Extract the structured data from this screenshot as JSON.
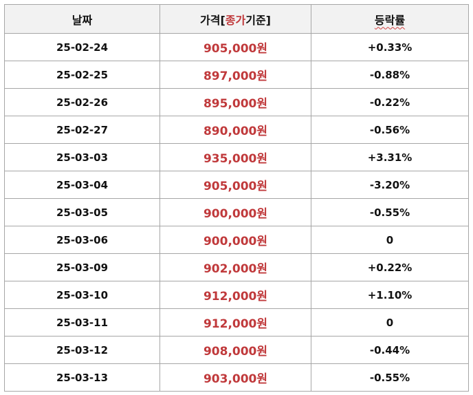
{
  "headers": {
    "date": "날짜",
    "price_prefix": "가격[",
    "price_highlight": "종가",
    "price_suffix": "기준]",
    "change": "등락률"
  },
  "rows": [
    {
      "date": "25-02-24",
      "price": "905,000원",
      "change": "+0.33%"
    },
    {
      "date": "25-02-25",
      "price": "897,000원",
      "change": "-0.88%"
    },
    {
      "date": "25-02-26",
      "price": "895,000원",
      "change": "-0.22%"
    },
    {
      "date": "25-02-27",
      "price": "890,000원",
      "change": "-0.56%"
    },
    {
      "date": "25-03-03",
      "price": "935,000원",
      "change": "+3.31%"
    },
    {
      "date": "25-03-04",
      "price": "905,000원",
      "change": "-3.20%"
    },
    {
      "date": "25-03-05",
      "price": "900,000원",
      "change": "-0.55%"
    },
    {
      "date": "25-03-06",
      "price": "900,000원",
      "change": "0"
    },
    {
      "date": "25-03-09",
      "price": "902,000원",
      "change": "+0.22%"
    },
    {
      "date": "25-03-10",
      "price": "912,000원",
      "change": "+1.10%"
    },
    {
      "date": "25-03-11",
      "price": "912,000원",
      "change": "0"
    },
    {
      "date": "25-03-12",
      "price": "908,000원",
      "change": "-0.44%"
    },
    {
      "date": "25-03-13",
      "price": "903,000원",
      "change": "-0.55%"
    }
  ],
  "colors": {
    "price": "#c0393b",
    "header_bg": "#f2f2f2",
    "border": "#a6a6a6"
  }
}
